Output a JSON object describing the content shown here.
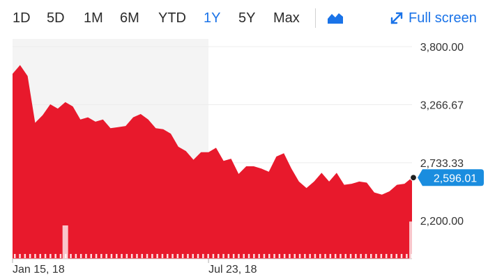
{
  "toolbar": {
    "ranges": [
      "1D",
      "5D",
      "1M",
      "6M",
      "YTD",
      "1Y",
      "5Y",
      "Max"
    ],
    "active_range": "1Y",
    "chart_type_icon": "area-chart-icon",
    "fullscreen_label": "Full screen",
    "fullscreen_icon": "expand-arrows-icon",
    "accent_color": "#1a73e8"
  },
  "chart_data": {
    "type": "area",
    "title": "",
    "xlabel": "",
    "ylabel": "",
    "series_color": "#e8192c",
    "x_tick_labels": [
      "Jan 15, 18",
      "Jul 23, 18"
    ],
    "y_ticks": [
      2200.0,
      2733.33,
      3266.67,
      3800.0
    ],
    "y_tick_labels": [
      "2,200.00",
      "2,733.33",
      "3,266.67",
      "3,800.00"
    ],
    "ylim": [
      1850,
      3870
    ],
    "grid": true,
    "last_value": 2596.01,
    "last_value_label": "2,596.01",
    "values": [
      3550,
      3630,
      3530,
      3100,
      3170,
      3270,
      3230,
      3290,
      3250,
      3130,
      3150,
      3110,
      3130,
      3050,
      3060,
      3070,
      3150,
      3180,
      3130,
      3050,
      3040,
      3000,
      2880,
      2840,
      2760,
      2830,
      2830,
      2870,
      2750,
      2770,
      2630,
      2700,
      2700,
      2680,
      2650,
      2790,
      2820,
      2680,
      2560,
      2500,
      2560,
      2640,
      2560,
      2640,
      2530,
      2540,
      2560,
      2550,
      2460,
      2440,
      2470,
      2530,
      2540,
      2596.01
    ],
    "volume_spikes": [
      {
        "index": 7,
        "level": 0.85
      },
      {
        "index": 53,
        "level": 0.95
      }
    ],
    "highlight_region_until_index": 26
  }
}
